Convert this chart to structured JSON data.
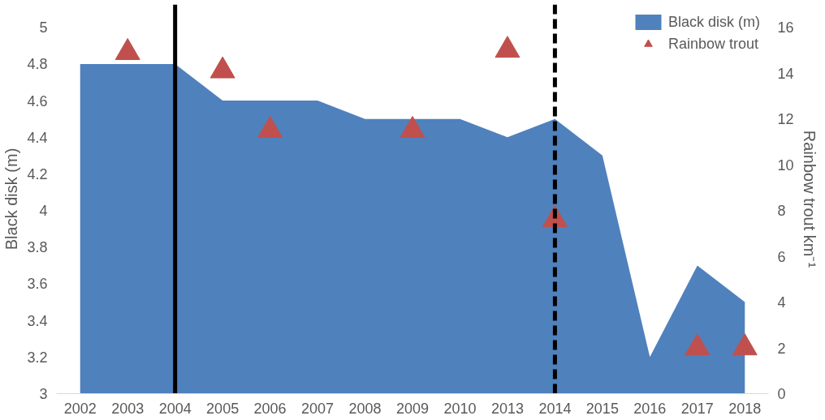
{
  "chart_data": {
    "type": "area",
    "categories": [
      "2002",
      "2003",
      "2004",
      "2005",
      "2006",
      "2007",
      "2008",
      "2009",
      "2010",
      "2013",
      "2014",
      "2015",
      "2016",
      "2017",
      "2018"
    ],
    "ylabel": "Black disk (m)",
    "y2label": "Rainbow trout km⁻¹",
    "ylim": [
      3,
      5.125
    ],
    "yticks": [
      3,
      3.2,
      3.4,
      3.6,
      3.8,
      4,
      4.2,
      4.4,
      4.6,
      4.8,
      5
    ],
    "y2lim": [
      0,
      17
    ],
    "y2ticks": [
      0,
      2,
      4,
      6,
      8,
      10,
      12,
      14,
      16
    ],
    "series": [
      {
        "name": "Black disk (m)",
        "color": "#4f81bd",
        "values": [
          4.8,
          4.8,
          4.8,
          4.6,
          4.6,
          4.6,
          4.5,
          4.5,
          4.5,
          4.4,
          4.5,
          4.3,
          3.2,
          3.7,
          3.5
        ]
      },
      {
        "name": "Rainbow trout",
        "type": "scatter",
        "axis": "y2",
        "color": "#c0504d",
        "marker": "triangle",
        "values": [
          null,
          14.9,
          null,
          14.1,
          11.5,
          null,
          null,
          11.5,
          null,
          15,
          7.6,
          null,
          null,
          2,
          2
        ]
      }
    ],
    "ref_lines": [
      {
        "axis": "x",
        "value": "2004",
        "color": "#000000",
        "line_style": "solid"
      },
      {
        "axis": "x",
        "value": "2014",
        "color": "#000000",
        "line_style": "dashed"
      }
    ],
    "legend": "top right",
    "grid": false
  }
}
